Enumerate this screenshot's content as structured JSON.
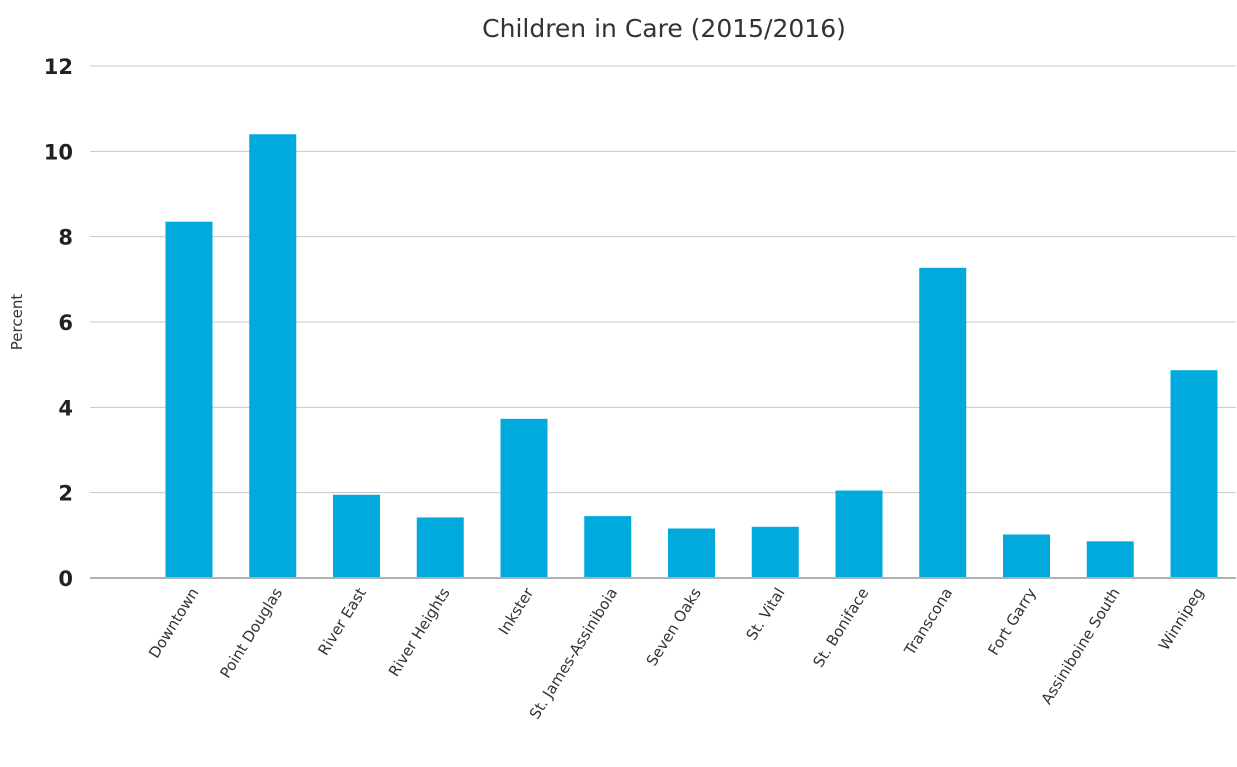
{
  "chart_data": {
    "type": "bar",
    "title": "Children in Care (2015/2016)",
    "xlabel": "",
    "ylabel": "Percent",
    "ylim": [
      0,
      12
    ],
    "yticks": [
      0,
      2,
      4,
      6,
      8,
      10,
      12
    ],
    "grid": true,
    "legend": "none",
    "bar_color": "#00aadd",
    "categories": [
      "Downtown",
      "Point Douglas",
      "River East",
      "River Heights",
      "Inkster",
      "St. James-Assiniboia",
      "Seven Oaks",
      "St. Vital",
      "St. Boniface",
      "Transcona",
      "Fort Garry",
      "Assiniboine South",
      "Winnipeg"
    ],
    "values": [
      8.35,
      10.4,
      1.95,
      1.42,
      3.73,
      1.45,
      1.16,
      1.2,
      2.05,
      7.27,
      1.02,
      0.86,
      4.87
    ]
  }
}
